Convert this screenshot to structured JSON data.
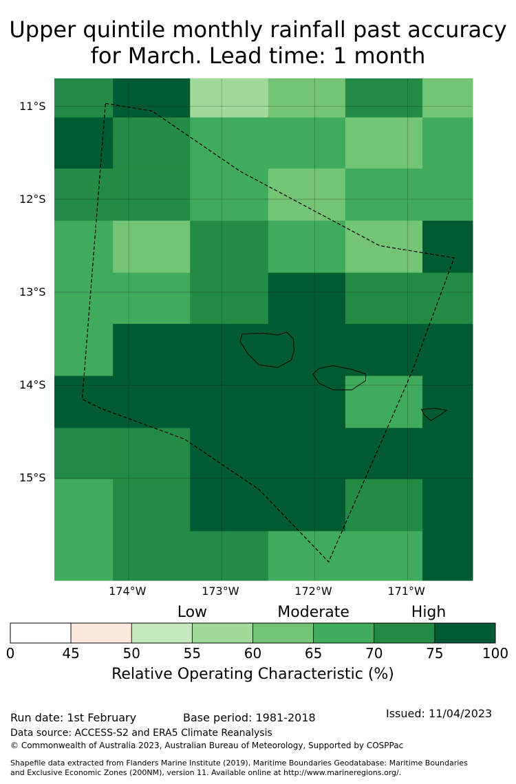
{
  "title": {
    "line1": "Upper quintile monthly rainfall past accuracy",
    "line2": "for March. Lead time: 1 month"
  },
  "map": {
    "lat_labels": [
      "11°S",
      "12°S",
      "13°S",
      "14°S",
      "15°S"
    ],
    "lon_labels": [
      "174°W",
      "173°W",
      "172°W",
      "171°W"
    ],
    "extent": {
      "lon_min": -174.8,
      "lon_max": -170.3,
      "lat_min": -16.1,
      "lat_max": -10.7
    },
    "grid": {
      "lon_edges": [
        -174.8,
        -174.17,
        -173.34,
        -172.5,
        -171.67,
        -170.84,
        -170.3
      ],
      "lat_edges": [
        -10.7,
        -11.12,
        -11.67,
        -12.23,
        -12.79,
        -13.34,
        -13.9,
        -14.46,
        -15.01,
        -15.57,
        -16.1
      ],
      "rows": [
        [
          72,
          76,
          57,
          62,
          72,
          62
        ],
        [
          76,
          72,
          67,
          67,
          62,
          67
        ],
        [
          72,
          72,
          67,
          62,
          67,
          67
        ],
        [
          67,
          62,
          72,
          67,
          62,
          76
        ],
        [
          67,
          67,
          72,
          76,
          72,
          72
        ],
        [
          67,
          76,
          76,
          76,
          76,
          76
        ],
        [
          76,
          76,
          76,
          76,
          67,
          76
        ],
        [
          72,
          72,
          76,
          76,
          76,
          76
        ],
        [
          67,
          72,
          76,
          76,
          72,
          76
        ],
        [
          67,
          72,
          72,
          67,
          67,
          76
        ]
      ]
    },
    "eez_boundary": [
      [
        -174.25,
        -10.97
      ],
      [
        -173.75,
        -11.05
      ],
      [
        -172.8,
        -11.7
      ],
      [
        -171.3,
        -12.5
      ],
      [
        -170.5,
        -12.63
      ],
      [
        -170.95,
        -13.85
      ],
      [
        -171.85,
        -15.9
      ],
      [
        -172.6,
        -15.12
      ],
      [
        -173.4,
        -14.58
      ],
      [
        -174.3,
        -14.25
      ],
      [
        -174.5,
        -14.15
      ],
      [
        -174.25,
        -10.97
      ]
    ],
    "islands": [
      [
        [
          -172.78,
          -13.45
        ],
        [
          -172.55,
          -13.44
        ],
        [
          -172.4,
          -13.46
        ],
        [
          -172.3,
          -13.43
        ],
        [
          -172.23,
          -13.5
        ],
        [
          -172.22,
          -13.62
        ],
        [
          -172.25,
          -13.73
        ],
        [
          -172.4,
          -13.81
        ],
        [
          -172.6,
          -13.78
        ],
        [
          -172.72,
          -13.66
        ],
        [
          -172.8,
          -13.53
        ],
        [
          -172.78,
          -13.45
        ]
      ],
      [
        [
          -171.95,
          -13.82
        ],
        [
          -171.8,
          -13.79
        ],
        [
          -171.6,
          -13.83
        ],
        [
          -171.45,
          -13.88
        ],
        [
          -171.45,
          -13.95
        ],
        [
          -171.6,
          -14.05
        ],
        [
          -171.8,
          -14.05
        ],
        [
          -171.95,
          -13.98
        ],
        [
          -172.02,
          -13.88
        ],
        [
          -171.95,
          -13.82
        ]
      ],
      [
        [
          -170.85,
          -14.26
        ],
        [
          -170.7,
          -14.25
        ],
        [
          -170.58,
          -14.27
        ],
        [
          -170.65,
          -14.32
        ],
        [
          -170.75,
          -14.38
        ],
        [
          -170.82,
          -14.32
        ],
        [
          -170.85,
          -14.26
        ]
      ]
    ]
  },
  "colorbar": {
    "categories": [
      {
        "label": "Low",
        "at": 55
      },
      {
        "label": "Moderate",
        "at": 67.5
      },
      {
        "label": "High",
        "at": 87.5
      }
    ],
    "ticks": [
      "0",
      "45",
      "50",
      "55",
      "60",
      "65",
      "70",
      "75",
      "100"
    ],
    "bins": [
      {
        "color": "#ffffff"
      },
      {
        "color": "#fee8de"
      },
      {
        "color": "#c7e9c0"
      },
      {
        "color": "#a1d99b"
      },
      {
        "color": "#74c476"
      },
      {
        "color": "#41ab5d"
      },
      {
        "color": "#238b45"
      },
      {
        "color": "#005a32"
      }
    ],
    "label": "Relative Operating Characteristic (%)"
  },
  "footer": {
    "run_date": "Run date: 1st February",
    "base_period": "Base period: 1981-2018",
    "issued": "Issued: 11/04/2023",
    "data_source": "Data source: ACCESS-S2 and ERA5 Climate Reanalysis",
    "copyright": "© Commonwealth of Australia 2023, Australian Bureau of Meteorology, Supported by COSPPac",
    "shapefile_line1": "Shapefile data extracted from Flanders Marine Institute (2019), Maritime Boundaries Geodatabase: Maritime Boundaries",
    "shapefile_line2": "and Exclusive Economic Zones (200NM), version 11. Available online at http://www.marineregions.org/."
  }
}
